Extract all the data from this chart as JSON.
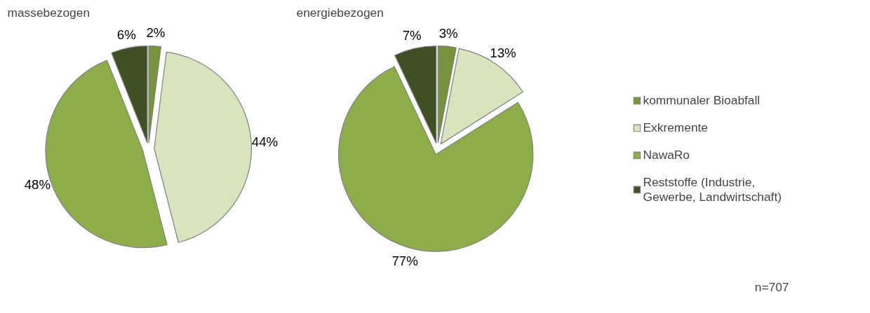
{
  "chart_data": [
    {
      "type": "pie",
      "title": "massebezogen",
      "values": [
        2,
        44,
        48,
        6
      ],
      "value_labels": [
        "2%",
        "44%",
        "48%",
        "6%"
      ],
      "colors": [
        "#77933c",
        "#d7e4bd",
        "#8cad4a",
        "#3f5124"
      ]
    },
    {
      "type": "pie",
      "title": "energiebezogen",
      "categories": [
        "kommunaler Bioabfall",
        "Exkremente",
        "NawaRo",
        "Reststoffe (Industrie, Gewerbe, Landwirtschaft)"
      ],
      "values": [
        3,
        13,
        77,
        7
      ],
      "value_labels": [
        "3%",
        "13%",
        "77%",
        "7%"
      ],
      "colors": [
        "#77933c",
        "#d7e4bd",
        "#8cad4a",
        "#3f5124"
      ],
      "legend": "right",
      "annotations": [
        "n=707"
      ]
    }
  ]
}
